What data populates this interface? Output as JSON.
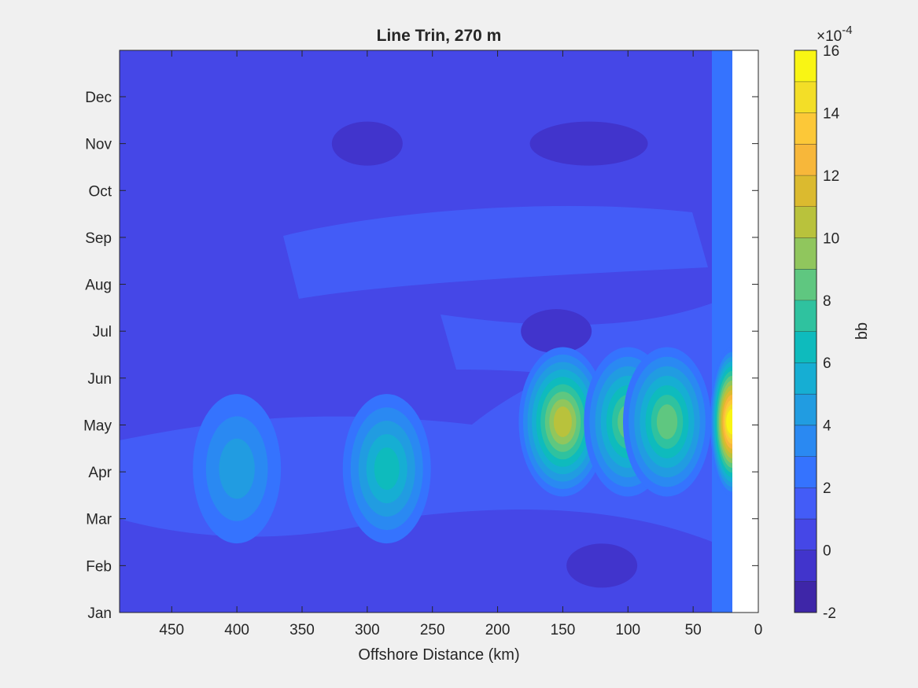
{
  "chart_data": {
    "type": "contour",
    "title": "Line Trin, 270 m",
    "xlabel": "Offshore Distance (km)",
    "ylabel": "",
    "xlim": [
      490,
      0
    ],
    "x_reversed": true,
    "xticks": [
      450,
      400,
      350,
      300,
      250,
      200,
      150,
      100,
      50,
      0
    ],
    "xtick_labels": [
      "450",
      "400",
      "350",
      "300",
      "250",
      "200",
      "150",
      "100",
      "50",
      "0"
    ],
    "y_categories": [
      "Jan",
      "Feb",
      "Mar",
      "Apr",
      "May",
      "Jun",
      "Jul",
      "Aug",
      "Sep",
      "Oct",
      "Nov",
      "Dec"
    ],
    "no_data_region": "x < 20 km",
    "colorbar": {
      "label": "bb",
      "exponent_prefix": "×10",
      "exponent": "-4",
      "range": [
        -2,
        16
      ],
      "ticks": [
        "-2",
        "0",
        "2",
        "4",
        "6",
        "8",
        "10",
        "12",
        "14",
        "16"
      ],
      "levels": [
        -2,
        -1,
        0,
        1,
        2,
        3,
        4,
        5,
        6,
        7,
        8,
        9,
        10,
        11,
        12,
        13,
        14,
        15,
        16
      ],
      "colors": [
        "#3e26a8",
        "#4134cc",
        "#4547e7",
        "#435cf7",
        "#3573fe",
        "#2a89f2",
        "#219ce1",
        "#16aed3",
        "#0ebbbd",
        "#2fc29f",
        "#5fc780",
        "#90c65d",
        "#b9c23c",
        "#dbba2f",
        "#f7b73a",
        "#fcc838",
        "#f3de27",
        "#f9f514"
      ]
    },
    "grid": false,
    "hotspots": [
      {
        "x": 150,
        "month": "May",
        "value": 9.5
      },
      {
        "x": 100,
        "month": "May",
        "value": 7.5
      },
      {
        "x": 70,
        "month": "May",
        "value": 7
      },
      {
        "x": 285,
        "month": "Apr",
        "value": 5
      },
      {
        "x": 20,
        "month": "May",
        "value": 14
      },
      {
        "x": 400,
        "month": "Apr",
        "value": 3.5
      }
    ],
    "lows": [
      {
        "x": 130,
        "month": "Nov",
        "value": -1
      },
      {
        "x": 300,
        "month": "Nov",
        "value": -1
      },
      {
        "x": 120,
        "month": "Feb",
        "value": -1
      },
      {
        "x": 155,
        "month": "Jul",
        "value": -1
      }
    ]
  }
}
